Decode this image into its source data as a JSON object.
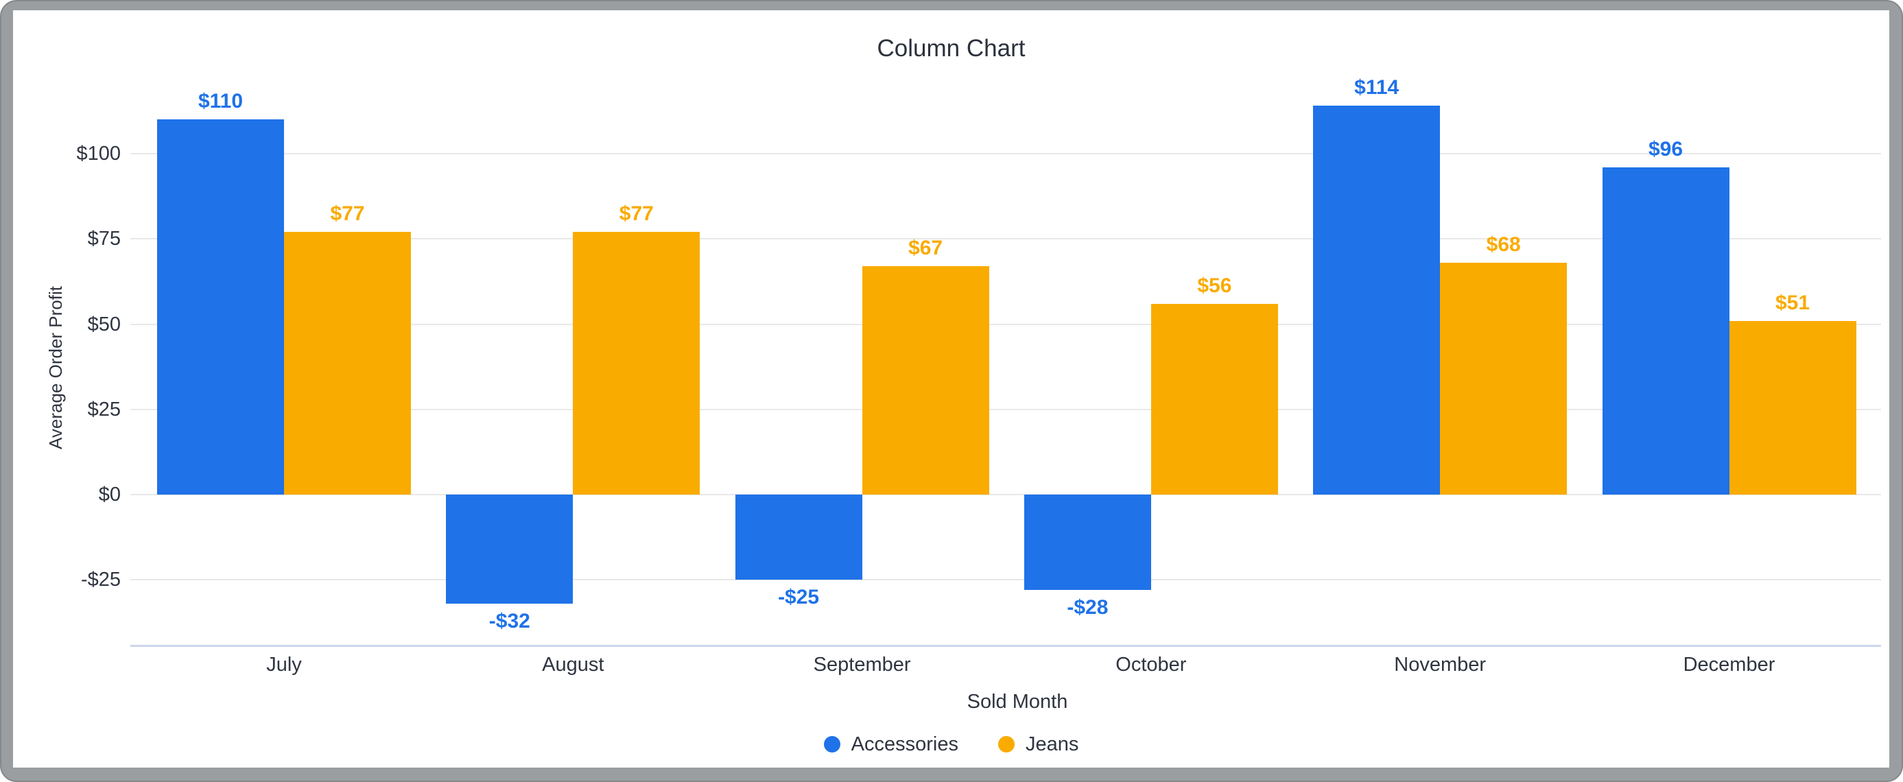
{
  "chart_data": {
    "type": "bar",
    "title": "Column Chart",
    "xlabel": "Sold Month",
    "ylabel": "Average Order Profit",
    "categories": [
      "July",
      "August",
      "September",
      "October",
      "November",
      "December"
    ],
    "series": [
      {
        "name": "Accessories",
        "color": "#1f72e8",
        "values": [
          110,
          -32,
          -25,
          -28,
          114,
          96
        ],
        "labels": [
          "$110",
          "-$32",
          "-$25",
          "-$28",
          "$114",
          "$96"
        ]
      },
      {
        "name": "Jeans",
        "color": "#f9ab00",
        "values": [
          77,
          77,
          67,
          56,
          68,
          51
        ],
        "labels": [
          "$77",
          "$77",
          "$67",
          "$56",
          "$68",
          "$51"
        ]
      }
    ],
    "y_ticks": [
      {
        "value": 100,
        "label": "$100"
      },
      {
        "value": 75,
        "label": "$75"
      },
      {
        "value": 50,
        "label": "$50"
      },
      {
        "value": 25,
        "label": "$25"
      },
      {
        "value": 0,
        "label": "$0"
      },
      {
        "value": -25,
        "label": "-$25"
      }
    ],
    "ylim": [
      -44,
      124
    ],
    "grid": true,
    "legend_position": "bottom",
    "colors": {
      "grid_line": "#e8e8e8",
      "axis_line": "#ccd6ec",
      "label_text": "#2f3540"
    }
  }
}
